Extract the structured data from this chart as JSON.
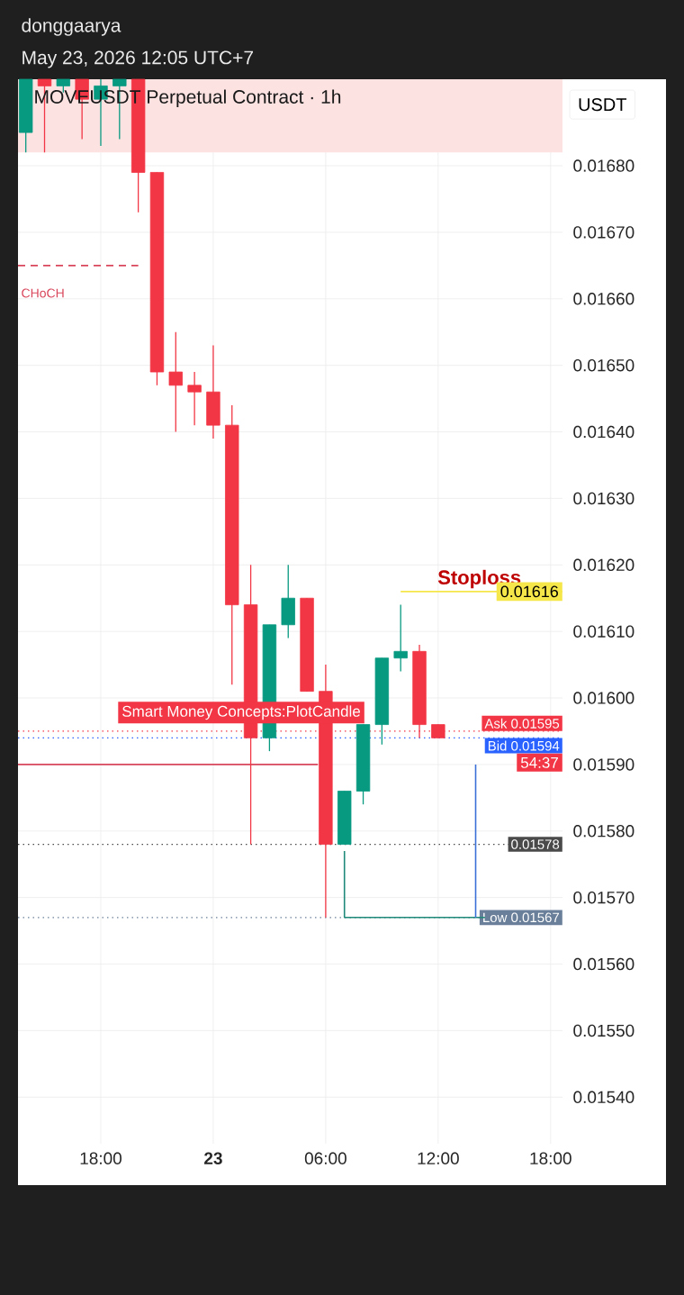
{
  "chart_data": {
    "type": "candlestick",
    "title": "MOVEUSDT Perpetual Contract · 1h",
    "ylabel": "USDT",
    "annotations": [
      "donggaarya",
      "May 23, 2026 12:05 UTC+7",
      "Smart Money Concepts:PlotCandle",
      "54:37"
    ],
    "x": [
      "2026-05-22T14:00",
      "2026-05-22T15:00",
      "2026-05-22T16:00",
      "2026-05-22T17:00",
      "2026-05-22T18:00",
      "2026-05-22T19:00",
      "2026-05-22T20:00",
      "2026-05-22T21:00",
      "2026-05-22T22:00",
      "2026-05-22T23:00",
      "2026-05-23T00:00",
      "2026-05-23T01:00",
      "2026-05-23T02:00",
      "2026-05-23T03:00",
      "2026-05-23T04:00",
      "2026-05-23T05:00",
      "2026-05-23T06:00",
      "2026-05-23T07:00",
      "2026-05-23T08:00",
      "2026-05-23T09:00",
      "2026-05-23T10:00",
      "2026-05-23T11:00",
      "2026-05-23T12:00"
    ],
    "ohlc": [
      [
        0.01685,
        0.01693,
        0.01682,
        0.01693
      ],
      [
        0.01693,
        0.01693,
        0.01682,
        0.01692
      ],
      [
        0.01692,
        0.01693,
        0.01691,
        0.01693
      ],
      [
        0.01693,
        0.01693,
        0.01684,
        0.0169
      ],
      [
        0.0169,
        0.01693,
        0.01683,
        0.01692
      ],
      [
        0.01692,
        0.01693,
        0.01684,
        0.01693
      ],
      [
        0.01693,
        0.01693,
        0.01673,
        0.01679
      ],
      [
        0.01679,
        0.01679,
        0.01647,
        0.01649
      ],
      [
        0.01649,
        0.01655,
        0.0164,
        0.01647
      ],
      [
        0.01647,
        0.01649,
        0.01641,
        0.01646
      ],
      [
        0.01646,
        0.01653,
        0.01639,
        0.01641
      ],
      [
        0.01641,
        0.01644,
        0.01602,
        0.01614
      ],
      [
        0.01614,
        0.0162,
        0.01578,
        0.01594
      ],
      [
        0.01594,
        0.01611,
        0.01592,
        0.01611
      ],
      [
        0.01611,
        0.0162,
        0.01609,
        0.01615
      ],
      [
        0.01615,
        0.01615,
        0.01601,
        0.01601
      ],
      [
        0.01601,
        0.01605,
        0.01567,
        0.01578
      ],
      [
        0.01578,
        0.01586,
        0.01578,
        0.01586
      ],
      [
        0.01586,
        0.01596,
        0.01584,
        0.01596
      ],
      [
        0.01596,
        0.01606,
        0.01593,
        0.01606
      ],
      [
        0.01606,
        0.01614,
        0.01604,
        0.01607
      ],
      [
        0.01607,
        0.01608,
        0.01594,
        0.01596
      ],
      [
        0.01596,
        0.01596,
        0.01594,
        0.01594
      ]
    ],
    "colors": [
      "#089981",
      "#f23645",
      "#089981",
      "#f23645",
      "#089981",
      "#089981",
      "#f23645",
      "#f23645",
      "#f23645",
      "#f23645",
      "#f23645",
      "#f23645",
      "#f23645",
      "#089981",
      "#089981",
      "#f23645",
      "#f23645",
      "#089981",
      "#089981",
      "#089981",
      "#089981",
      "#f23645",
      "#f23645"
    ],
    "series": [
      {
        "type": "line",
        "name": "CHoCH",
        "color": "#d9475c",
        "line_style": "dashed",
        "x": [
          "2026-05-22T13:35",
          "2026-05-22T20:00"
        ],
        "values": [
          0.01665,
          0.01665
        ]
      },
      {
        "type": "line",
        "color": "#d9475c",
        "x": [
          "2026-05-22T13:35",
          "2026-05-23T05:35"
        ],
        "values": [
          0.0159,
          0.0159
        ]
      },
      {
        "type": "line",
        "color": "#1f8a7a",
        "x": [
          "2026-05-23T07:00",
          "2026-05-23T07:00",
          "2026-05-23T14:30"
        ],
        "values": [
          0.01577,
          0.01567,
          0.01567
        ]
      },
      {
        "type": "line",
        "color": "#3b6fd8",
        "x": [
          "2026-05-23T14:00",
          "2026-05-23T14:00"
        ],
        "values": [
          0.0159,
          0.01567
        ]
      },
      {
        "type": "line",
        "name": "Stoploss",
        "color": "#f5e64a",
        "x": [
          "2026-05-23T10:00",
          "2026-05-23T18:38"
        ],
        "values": [
          0.01616,
          0.01616
        ],
        "value_labels": [
          null,
          "0.01616"
        ]
      }
    ],
    "ref_lines": [
      {
        "axis": "y",
        "value": 0.01595,
        "label": "Ask 0.01595",
        "color": "#f23645",
        "line_style": "dotted"
      },
      {
        "axis": "y",
        "value": 0.01594,
        "label": "Bid 0.01594",
        "color": "#2962ff",
        "line_style": "dotted"
      },
      {
        "axis": "y",
        "value": 0.01578,
        "label": "0.01578",
        "color": "#4a4a4a",
        "line_style": "dotted"
      },
      {
        "axis": "y",
        "value": 0.01567,
        "label": "Low 0.01567",
        "color": "#6a7f99",
        "line_style": "dotted"
      }
    ],
    "bands": [
      {
        "axis": "y",
        "from": 0.01682,
        "to": 0.01693,
        "color": "#fde2e2"
      }
    ],
    "xlim": [
      "2026-05-22T13:35",
      "2026-05-23T18:38"
    ],
    "ylim": [
      0.01533,
      0.01693
    ],
    "xticks": [
      {
        "value": "2026-05-22T18:00",
        "label": "18:00"
      },
      {
        "value": "2026-05-23T00:00",
        "label": "**23**"
      },
      {
        "value": "2026-05-23T06:00",
        "label": "06:00"
      },
      {
        "value": "2026-05-23T12:00",
        "label": "12:00"
      },
      {
        "value": "2026-05-23T18:00",
        "label": "18:00"
      }
    ],
    "yticks": [
      {
        "value": 0.0154,
        "label": "0.01540"
      },
      {
        "value": 0.0155,
        "label": "0.01550"
      },
      {
        "value": 0.0156,
        "label": "0.01560"
      },
      {
        "value": 0.0157,
        "label": "0.01570"
      },
      {
        "value": 0.0158,
        "label": "0.01580"
      },
      {
        "value": 0.0159,
        "label": "0.01590"
      },
      {
        "value": 0.016,
        "label": "0.01600"
      },
      {
        "value": 0.0161,
        "label": "0.01610"
      },
      {
        "value": 0.0162,
        "label": "0.01620"
      },
      {
        "value": 0.0163,
        "label": "0.01630"
      },
      {
        "value": 0.0164,
        "label": "0.01640"
      },
      {
        "value": 0.0165,
        "label": "0.01650"
      },
      {
        "value": 0.0166,
        "label": "0.01660"
      },
      {
        "value": 0.0167,
        "label": "0.01670"
      },
      {
        "value": 0.0168,
        "label": "0.01680"
      }
    ],
    "grid": true
  }
}
